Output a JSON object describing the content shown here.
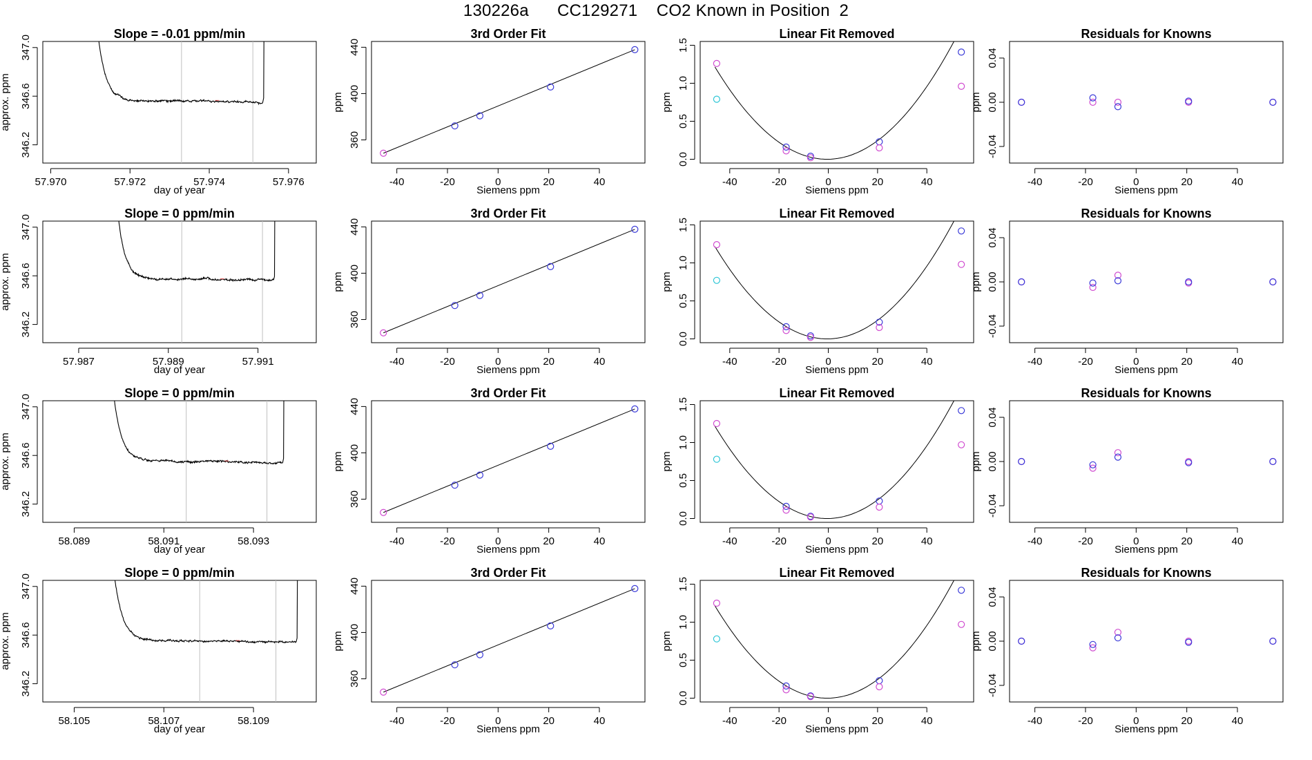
{
  "title": "130226a      CC129271    CO2 Known in Position  2",
  "colors": {
    "sample_trace": "#000000",
    "marker_window": "#bfbfbf",
    "point_blue": "#3a3ad8",
    "point_magenta": "#d04bd0",
    "point_cyan": "#2ec6d6",
    "fit_line": "#000000"
  },
  "chart_data": [
    {
      "type": "line",
      "row": 0,
      "panel": "timeseries",
      "title": "Slope =  -0.01  ppm/min",
      "xlabel": "day of year",
      "ylabel": "approx. ppm",
      "xlim": [
        57.9698,
        57.9767
      ],
      "ylim": [
        346.05,
        347.05
      ],
      "xticks": [
        57.97,
        57.972,
        57.974,
        57.976
      ],
      "xtick_labels": [
        "57.970",
        "57.972",
        "57.974",
        "57.976"
      ],
      "yticks": [
        346.2,
        346.6,
        347.0
      ],
      "ytick_labels": [
        "346.2",
        "346.6",
        "347.0"
      ],
      "window_markers": [
        57.9733,
        57.9751
      ],
      "spike_start": 57.97105,
      "spike_end": 57.97535,
      "plateau_start": 346.8,
      "plateau_level": 346.565
    },
    {
      "type": "line",
      "row": 0,
      "panel": "fit",
      "title": "3rd Order Fit",
      "xlabel": "Siemens ppm",
      "ylabel": "ppm",
      "xlim": [
        -50,
        58
      ],
      "ylim": [
        340,
        445
      ],
      "xticks": [
        -40,
        -20,
        0,
        20,
        40
      ],
      "xtick_labels": [
        "-40",
        "-20",
        "0",
        "20",
        "40"
      ],
      "yticks": [
        360,
        400,
        440
      ],
      "ytick_labels": [
        "360",
        "400",
        "440"
      ],
      "x": [
        -45.3,
        -17.1,
        -7.2,
        20.7,
        54.0
      ],
      "y": [
        348.5,
        372.1,
        380.8,
        405.7,
        437.9
      ]
    },
    {
      "type": "scatter",
      "row": 0,
      "panel": "linear_removed",
      "title": "Linear Fit Removed",
      "xlabel": "Siemens ppm",
      "ylabel": "ppm",
      "xlim": [
        -52,
        59
      ],
      "ylim": [
        -0.05,
        1.55
      ],
      "xticks": [
        -40,
        -20,
        0,
        20,
        40
      ],
      "xtick_labels": [
        "-40",
        "-20",
        "0",
        "20",
        "40"
      ],
      "yticks": [
        0.0,
        0.5,
        1.0,
        1.5
      ],
      "ytick_labels": [
        "0.0",
        "0.5",
        "1.0",
        "1.5"
      ],
      "curve": {
        "a": 0.000585,
        "b": 0.00053,
        "from": -46,
        "to": 55
      },
      "series": [
        {
          "color": "blue",
          "x": [
            -17.1,
            -7.2,
            20.7,
            54.0
          ],
          "y": [
            0.16,
            0.04,
            0.23,
            1.41
          ]
        },
        {
          "color": "magenta",
          "x": [
            -45.3,
            -17.1,
            -7.2,
            20.7,
            54.0
          ],
          "y": [
            1.26,
            0.11,
            0.02,
            0.15,
            0.96
          ]
        },
        {
          "color": "cyan",
          "x": [
            -45.3
          ],
          "y": [
            0.79
          ]
        }
      ]
    },
    {
      "type": "scatter",
      "row": 0,
      "panel": "residuals",
      "title": "Residuals for Knowns",
      "xlabel": "Siemens ppm",
      "ylabel": "ppm",
      "xlim": [
        -50,
        58
      ],
      "ylim": [
        -0.055,
        0.055
      ],
      "xticks": [
        -40,
        -20,
        0,
        20,
        40
      ],
      "xtick_labels": [
        "-40",
        "-20",
        "0",
        "20",
        "40"
      ],
      "yticks": [
        -0.04,
        0.0,
        0.04
      ],
      "ytick_labels": [
        "-0.04",
        "0.00",
        "0.04"
      ],
      "series": [
        {
          "color": "blue",
          "x": [
            -45.3,
            -17.1,
            -7.2,
            20.7,
            54.0
          ],
          "y": [
            0.0,
            0.004,
            -0.004,
            0.001,
            0.0
          ]
        },
        {
          "color": "magenta",
          "x": [
            -45.3,
            -17.1,
            -7.2,
            20.7,
            54.0
          ],
          "y": [
            0.0,
            0.0,
            0.0,
            0.0,
            0.0
          ]
        }
      ]
    },
    {
      "type": "line",
      "row": 1,
      "panel": "timeseries",
      "title": "Slope =  0  ppm/min",
      "xlabel": "day of year",
      "ylabel": "approx. ppm",
      "xlim": [
        57.9862,
        57.9923
      ],
      "ylim": [
        346.05,
        347.05
      ],
      "xticks": [
        57.987,
        57.989,
        57.991
      ],
      "xtick_labels": [
        "57.987",
        "57.989",
        "57.991"
      ],
      "yticks": [
        346.2,
        346.6,
        347.0
      ],
      "ytick_labels": [
        "346.2",
        "346.6",
        "347.0"
      ],
      "window_markers": [
        57.9893,
        57.9911
      ],
      "spike_start": 57.98775,
      "spike_end": 57.99135,
      "plateau_start": 346.83,
      "plateau_level": 346.575
    },
    {
      "type": "line",
      "row": 1,
      "panel": "fit",
      "title": "3rd Order Fit",
      "xlabel": "Siemens ppm",
      "ylabel": "ppm",
      "xlim": [
        -50,
        58
      ],
      "ylim": [
        340,
        445
      ],
      "xticks": [
        -40,
        -20,
        0,
        20,
        40
      ],
      "xtick_labels": [
        "-40",
        "-20",
        "0",
        "20",
        "40"
      ],
      "yticks": [
        360,
        400,
        440
      ],
      "ytick_labels": [
        "360",
        "400",
        "440"
      ],
      "x": [
        -45.3,
        -17.1,
        -7.2,
        20.7,
        54.0
      ],
      "y": [
        348.5,
        372.1,
        380.8,
        405.7,
        437.9
      ]
    },
    {
      "type": "scatter",
      "row": 1,
      "panel": "linear_removed",
      "title": "Linear Fit Removed",
      "xlabel": "Siemens ppm",
      "ylabel": "ppm",
      "xlim": [
        -52,
        59
      ],
      "ylim": [
        -0.05,
        1.55
      ],
      "xticks": [
        -40,
        -20,
        0,
        20,
        40
      ],
      "xtick_labels": [
        "-40",
        "-20",
        "0",
        "20",
        "40"
      ],
      "yticks": [
        0.0,
        0.5,
        1.0,
        1.5
      ],
      "ytick_labels": [
        "0.0",
        "0.5",
        "1.0",
        "1.5"
      ],
      "curve": {
        "a": 0.000585,
        "b": 0.00053,
        "from": -46,
        "to": 55
      },
      "series": [
        {
          "color": "blue",
          "x": [
            -17.1,
            -7.2,
            20.7,
            54.0
          ],
          "y": [
            0.16,
            0.04,
            0.22,
            1.42
          ]
        },
        {
          "color": "magenta",
          "x": [
            -45.3,
            -17.1,
            -7.2,
            20.7,
            54.0
          ],
          "y": [
            1.24,
            0.11,
            0.02,
            0.15,
            0.98
          ]
        },
        {
          "color": "cyan",
          "x": [
            -45.3
          ],
          "y": [
            0.77
          ]
        }
      ]
    },
    {
      "type": "scatter",
      "row": 1,
      "panel": "residuals",
      "title": "Residuals for Knowns",
      "xlabel": "Siemens ppm",
      "ylabel": "ppm",
      "xlim": [
        -50,
        58
      ],
      "ylim": [
        -0.055,
        0.055
      ],
      "xticks": [
        -40,
        -20,
        0,
        20,
        40
      ],
      "xtick_labels": [
        "-40",
        "-20",
        "0",
        "20",
        "40"
      ],
      "yticks": [
        -0.04,
        0.0,
        0.04
      ],
      "ytick_labels": [
        "-0.04",
        "0.00",
        "0.04"
      ],
      "series": [
        {
          "color": "blue",
          "x": [
            -45.3,
            -17.1,
            -7.2,
            20.7,
            54.0
          ],
          "y": [
            0.0,
            -0.001,
            0.001,
            0.0,
            0.0
          ]
        },
        {
          "color": "magenta",
          "x": [
            -45.3,
            -17.1,
            -7.2,
            20.7,
            54.0
          ],
          "y": [
            0.0,
            -0.005,
            0.006,
            -0.001,
            0.0
          ]
        }
      ]
    },
    {
      "type": "line",
      "row": 2,
      "panel": "timeseries",
      "title": "Slope =  0  ppm/min",
      "xlabel": "day of year",
      "ylabel": "approx. ppm",
      "xlim": [
        58.0883,
        58.0944
      ],
      "ylim": [
        346.05,
        347.05
      ],
      "xticks": [
        58.089,
        58.091,
        58.093
      ],
      "xtick_labels": [
        "58.089",
        "58.091",
        "58.093"
      ],
      "yticks": [
        346.2,
        346.6,
        347.0
      ],
      "ytick_labels": [
        "346.2",
        "346.6",
        "347.0"
      ],
      "window_markers": [
        58.0915,
        58.0933
      ],
      "spike_start": 58.08975,
      "spike_end": 58.09365,
      "plateau_start": 346.8,
      "plateau_level": 346.555
    },
    {
      "type": "line",
      "row": 2,
      "panel": "fit",
      "title": "3rd Order Fit",
      "xlabel": "Siemens ppm",
      "ylabel": "ppm",
      "xlim": [
        -50,
        58
      ],
      "ylim": [
        340,
        445
      ],
      "xticks": [
        -40,
        -20,
        0,
        20,
        40
      ],
      "xtick_labels": [
        "-40",
        "-20",
        "0",
        "20",
        "40"
      ],
      "yticks": [
        360,
        400,
        440
      ],
      "ytick_labels": [
        "360",
        "400",
        "440"
      ],
      "x": [
        -45.3,
        -17.1,
        -7.2,
        20.7,
        54.0
      ],
      "y": [
        348.5,
        372.1,
        380.8,
        405.7,
        437.9
      ]
    },
    {
      "type": "scatter",
      "row": 2,
      "panel": "linear_removed",
      "title": "Linear Fit Removed",
      "xlabel": "Siemens ppm",
      "ylabel": "ppm",
      "xlim": [
        -52,
        59
      ],
      "ylim": [
        -0.05,
        1.55
      ],
      "xticks": [
        -40,
        -20,
        0,
        20,
        40
      ],
      "xtick_labels": [
        "-40",
        "-20",
        "0",
        "20",
        "40"
      ],
      "yticks": [
        0.0,
        0.5,
        1.0,
        1.5
      ],
      "ytick_labels": [
        "0.0",
        "0.5",
        "1.0",
        "1.5"
      ],
      "curve": {
        "a": 0.000585,
        "b": 0.00053,
        "from": -46,
        "to": 55
      },
      "series": [
        {
          "color": "blue",
          "x": [
            -17.1,
            -7.2,
            20.7,
            54.0
          ],
          "y": [
            0.16,
            0.03,
            0.23,
            1.42
          ]
        },
        {
          "color": "magenta",
          "x": [
            -45.3,
            -17.1,
            -7.2,
            20.7,
            54.0
          ],
          "y": [
            1.25,
            0.11,
            0.02,
            0.15,
            0.97
          ]
        },
        {
          "color": "cyan",
          "x": [
            -45.3
          ],
          "y": [
            0.78
          ]
        }
      ]
    },
    {
      "type": "scatter",
      "row": 2,
      "panel": "residuals",
      "title": "Residuals for Knowns",
      "xlabel": "Siemens ppm",
      "ylabel": "ppm",
      "xlim": [
        -50,
        58
      ],
      "ylim": [
        -0.055,
        0.055
      ],
      "xticks": [
        -40,
        -20,
        0,
        20,
        40
      ],
      "xtick_labels": [
        "-40",
        "-20",
        "0",
        "20",
        "40"
      ],
      "yticks": [
        -0.04,
        0.0,
        0.04
      ],
      "ytick_labels": [
        "-0.04",
        "0.00",
        "0.04"
      ],
      "series": [
        {
          "color": "blue",
          "x": [
            -45.3,
            -17.1,
            -7.2,
            20.7,
            54.0
          ],
          "y": [
            0.0,
            -0.003,
            0.004,
            -0.001,
            0.0
          ]
        },
        {
          "color": "magenta",
          "x": [
            -45.3,
            -17.1,
            -7.2,
            20.7,
            54.0
          ],
          "y": [
            0.0,
            -0.006,
            0.008,
            0.0,
            0.0
          ]
        }
      ]
    },
    {
      "type": "line",
      "row": 3,
      "panel": "timeseries",
      "title": "Slope =  0  ppm/min",
      "xlabel": "day of year",
      "ylabel": "approx. ppm",
      "xlim": [
        58.1043,
        58.1104
      ],
      "ylim": [
        346.05,
        347.05
      ],
      "xticks": [
        58.105,
        58.107,
        58.109
      ],
      "xtick_labels": [
        "58.105",
        "58.107",
        "58.109"
      ],
      "yticks": [
        346.2,
        346.6,
        347.0
      ],
      "ytick_labels": [
        "346.2",
        "346.6",
        "347.0"
      ],
      "window_markers": [
        58.1078,
        58.1095
      ],
      "spike_start": 58.10575,
      "spike_end": 58.10995,
      "plateau_start": 346.8,
      "plateau_level": 346.555
    },
    {
      "type": "line",
      "row": 3,
      "panel": "fit",
      "title": "3rd Order Fit",
      "xlabel": "Siemens ppm",
      "ylabel": "ppm",
      "xlim": [
        -50,
        58
      ],
      "ylim": [
        340,
        445
      ],
      "xticks": [
        -40,
        -20,
        0,
        20,
        40
      ],
      "xtick_labels": [
        "-40",
        "-20",
        "0",
        "20",
        "40"
      ],
      "yticks": [
        360,
        400,
        440
      ],
      "ytick_labels": [
        "360",
        "400",
        "440"
      ],
      "x": [
        -45.3,
        -17.1,
        -7.2,
        20.7,
        54.0
      ],
      "y": [
        348.5,
        372.1,
        380.8,
        405.7,
        437.9
      ]
    },
    {
      "type": "scatter",
      "row": 3,
      "panel": "linear_removed",
      "title": "Linear Fit Removed",
      "xlabel": "Siemens ppm",
      "ylabel": "ppm",
      "xlim": [
        -52,
        59
      ],
      "ylim": [
        -0.05,
        1.55
      ],
      "xticks": [
        -40,
        -20,
        0,
        20,
        40
      ],
      "xtick_labels": [
        "-40",
        "-20",
        "0",
        "20",
        "40"
      ],
      "yticks": [
        0.0,
        0.5,
        1.0,
        1.5
      ],
      "ytick_labels": [
        "0.0",
        "0.5",
        "1.0",
        "1.5"
      ],
      "curve": {
        "a": 0.000585,
        "b": 0.00053,
        "from": -46,
        "to": 55
      },
      "series": [
        {
          "color": "blue",
          "x": [
            -17.1,
            -7.2,
            20.7,
            54.0
          ],
          "y": [
            0.16,
            0.03,
            0.23,
            1.42
          ]
        },
        {
          "color": "magenta",
          "x": [
            -45.3,
            -17.1,
            -7.2,
            20.7,
            54.0
          ],
          "y": [
            1.25,
            0.11,
            0.02,
            0.15,
            0.97
          ]
        },
        {
          "color": "cyan",
          "x": [
            -45.3
          ],
          "y": [
            0.78
          ]
        }
      ]
    },
    {
      "type": "scatter",
      "row": 3,
      "panel": "residuals",
      "title": "Residuals for Knowns",
      "xlabel": "Siemens ppm",
      "ylabel": "ppm",
      "xlim": [
        -50,
        58
      ],
      "ylim": [
        -0.055,
        0.055
      ],
      "xticks": [
        -40,
        -20,
        0,
        20,
        40
      ],
      "xtick_labels": [
        "-40",
        "-20",
        "0",
        "20",
        "40"
      ],
      "yticks": [
        -0.04,
        0.0,
        0.04
      ],
      "ytick_labels": [
        "-0.04",
        "0.00",
        "0.04"
      ],
      "series": [
        {
          "color": "blue",
          "x": [
            -45.3,
            -17.1,
            -7.2,
            20.7,
            54.0
          ],
          "y": [
            0.0,
            -0.003,
            0.003,
            -0.001,
            0.0
          ]
        },
        {
          "color": "magenta",
          "x": [
            -45.3,
            -17.1,
            -7.2,
            20.7,
            54.0
          ],
          "y": [
            0.0,
            -0.006,
            0.008,
            0.0,
            0.0
          ]
        }
      ]
    }
  ]
}
